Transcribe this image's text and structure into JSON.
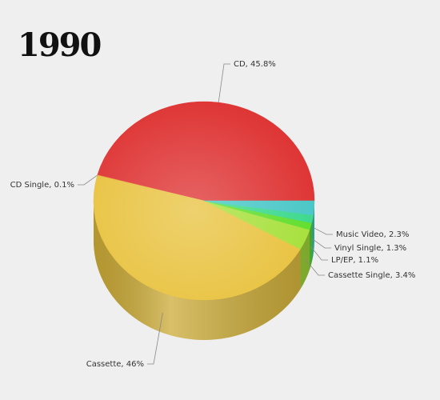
{
  "chart_data": {
    "type": "pie",
    "title": "1990",
    "values": [
      45.8,
      0.1,
      46,
      3.4,
      1.1,
      1.3,
      2.3
    ],
    "value_labels": [
      "CD, 45.8%",
      "CD Single, 0.1%",
      "Cassette, 46%",
      "Cassette Single, 3.4%",
      "LP/EP, 1.1%",
      "Vinyl Single, 1.3%",
      "Music Video, 2.3%"
    ],
    "colors": [
      "#de3232",
      "#e8883a",
      "#e8c23e",
      "#a6e03a",
      "#5ede2a",
      "#3ad88c",
      "#48c6c6"
    ]
  }
}
